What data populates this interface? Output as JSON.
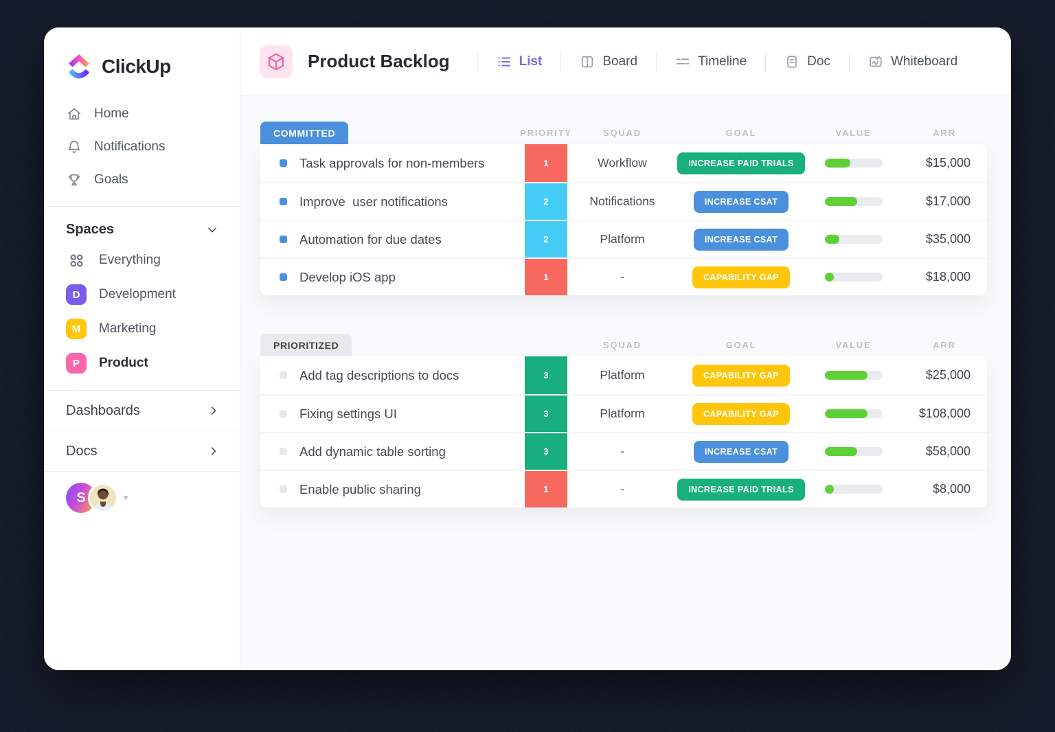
{
  "colors": {
    "accent_purple": "#7B68EE",
    "badge_committed_bg": "#4A90DC",
    "badge_prioritized_bg": "#E9EAEF",
    "priority_red": "#F7685F",
    "priority_cyan": "#45CCF5",
    "priority_green": "#18AE7E",
    "goal_green": "#19B07D",
    "goal_blue": "#4A90DC",
    "goal_yellow": "#FFC60B",
    "progress_fill": "#5FD136",
    "progress_track": "#E9EBEF",
    "bullet_blue": "#4A90DC",
    "bullet_gray": "#E6E8EE",
    "space_development": "#7C5CE8",
    "space_marketing": "#FFC60B",
    "space_product": "#F966AE"
  },
  "sidebar": {
    "logo_text": "ClickUp",
    "nav": [
      {
        "label": "Home",
        "icon": "home-icon"
      },
      {
        "label": "Notifications",
        "icon": "bell-icon"
      },
      {
        "label": "Goals",
        "icon": "trophy-icon"
      }
    ],
    "spaces": {
      "header": "Spaces",
      "items": [
        {
          "label": "Everything",
          "icon": "grid-icon"
        },
        {
          "label": "Development",
          "badge": "D",
          "color_key": "space_development"
        },
        {
          "label": "Marketing",
          "badge": "M",
          "color_key": "space_marketing"
        },
        {
          "label": "Product",
          "badge": "P",
          "color_key": "space_product",
          "active": true
        }
      ]
    },
    "links": [
      {
        "label": "Dashboards"
      },
      {
        "label": "Docs"
      }
    ],
    "account": {
      "workspace_initial": "S"
    }
  },
  "header": {
    "title": "Product Backlog",
    "tabs": [
      {
        "label": "List",
        "active": true
      },
      {
        "label": "Board"
      },
      {
        "label": "Timeline"
      },
      {
        "label": "Doc"
      },
      {
        "label": "Whiteboard"
      }
    ]
  },
  "table": {
    "columns": [
      "PRIORITY",
      "SQUAD",
      "GOAL",
      "VALUE",
      "ARR"
    ],
    "sections": [
      {
        "label": "COMMITTED",
        "badge": "blue",
        "show_priority_column_label": true,
        "rows": [
          {
            "task": "Task approvals for non-members",
            "bullet": "bullet_blue",
            "priority": "1",
            "priority_color": "priority_red",
            "squad": "Workflow",
            "goal": "INCREASE PAID TRIALS",
            "goal_color": "goal_green",
            "value_pct": 45,
            "arr": "$15,000"
          },
          {
            "task": "Improve  user notifications",
            "bullet": "bullet_blue",
            "priority": "2",
            "priority_color": "priority_cyan",
            "squad": "Notifications",
            "goal": "INCREASE CSAT",
            "goal_color": "goal_blue",
            "value_pct": 56,
            "arr": "$17,000"
          },
          {
            "task": "Automation for due dates",
            "bullet": "bullet_blue",
            "priority": "2",
            "priority_color": "priority_cyan",
            "squad": "Platform",
            "goal": "INCREASE CSAT",
            "goal_color": "goal_blue",
            "value_pct": 25,
            "arr": "$35,000"
          },
          {
            "task": "Develop iOS app",
            "bullet": "bullet_blue",
            "priority": "1",
            "priority_color": "priority_red",
            "squad": "-",
            "goal": "CAPABILITY GAP",
            "goal_color": "goal_yellow",
            "value_pct": 16,
            "arr": "$18,000"
          }
        ]
      },
      {
        "label": "PRIORITIZED",
        "badge": "gray",
        "show_priority_column_label": false,
        "rows": [
          {
            "task": "Add tag descriptions to docs",
            "bullet": "bullet_gray",
            "priority": "3",
            "priority_color": "priority_green",
            "squad": "Platform",
            "goal": "CAPABILITY GAP",
            "goal_color": "goal_yellow",
            "value_pct": 74,
            "arr": "$25,000"
          },
          {
            "task": "Fixing settings UI",
            "bullet": "bullet_gray",
            "priority": "3",
            "priority_color": "priority_green",
            "squad": "Platform",
            "goal": "CAPABILITY GAP",
            "goal_color": "goal_yellow",
            "value_pct": 74,
            "arr": "$108,000"
          },
          {
            "task": "Add dynamic table sorting",
            "bullet": "bullet_gray",
            "priority": "3",
            "priority_color": "priority_green",
            "squad": "-",
            "goal": "INCREASE CSAT",
            "goal_color": "goal_blue",
            "value_pct": 56,
            "arr": "$58,000"
          },
          {
            "task": "Enable public sharing",
            "bullet": "bullet_gray",
            "priority": "1",
            "priority_color": "priority_red",
            "squad": "-",
            "goal": "INCREASE PAID TRIALS",
            "goal_color": "goal_green",
            "value_pct": 16,
            "arr": "$8,000"
          }
        ]
      }
    ]
  }
}
